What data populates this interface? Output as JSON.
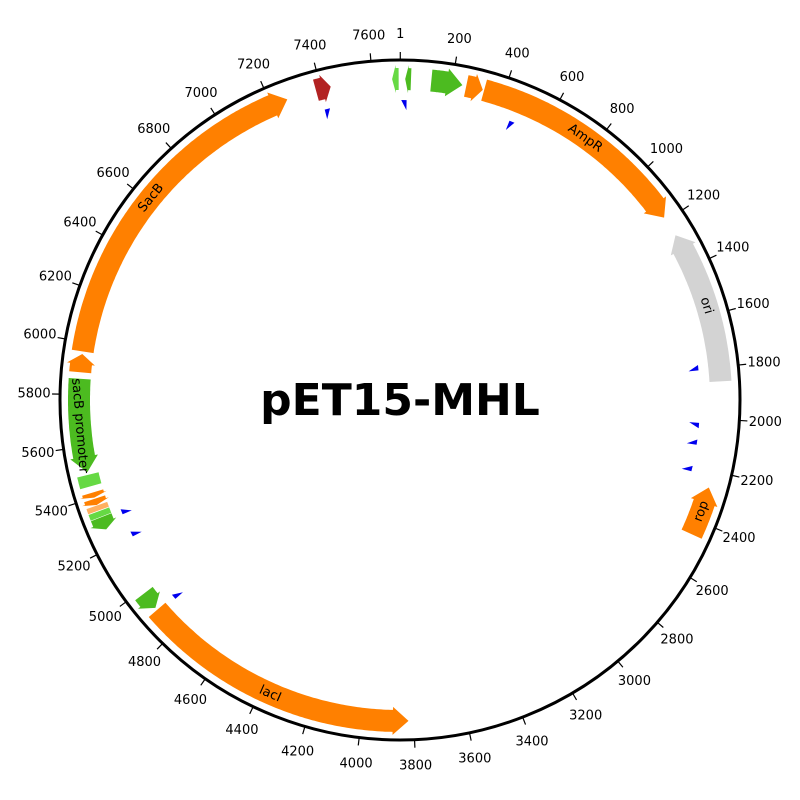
{
  "title": "pET15-MHL",
  "total_length": 7705,
  "tick_positions": [
    1,
    200,
    400,
    600,
    800,
    1000,
    1200,
    1400,
    1600,
    1800,
    2000,
    2200,
    2400,
    2600,
    2800,
    3000,
    3200,
    3400,
    3600,
    3800,
    4000,
    4200,
    4400,
    4600,
    4800,
    5000,
    5200,
    5400,
    5600,
    5800,
    6000,
    6200,
    6400,
    6600,
    6800,
    7000,
    7200,
    7400,
    7600
  ],
  "tick_labels": [
    "1",
    "200",
    "400",
    "600",
    "800",
    "1000",
    "1200",
    "1400",
    "1600",
    "1800",
    "2000",
    "2200",
    "2400",
    "2600",
    "2800",
    "3000",
    "3200",
    "3400",
    "3600",
    "3800",
    "4000",
    "4200",
    "4400",
    "4600",
    "4800",
    "5000",
    "5200",
    "5400",
    "5600",
    "5800",
    "6000",
    "6200",
    "6400",
    "6600",
    "6800",
    "7000",
    "7200",
    "7400",
    "7600"
  ],
  "colors": {
    "orange": "#ff8000",
    "green": "#4cbb20",
    "light_green": "#66d944",
    "light_orange": "#ffb060",
    "grey": "#d3d3d3",
    "blue": "#0000ee",
    "red": "#b22222"
  },
  "features": [
    {
      "label": "AmpR",
      "start": 325,
      "end": 1185,
      "strand": 1,
      "color": "orange",
      "lane": "main"
    },
    {
      "label": "",
      "start": 255,
      "end": 320,
      "strand": 1,
      "color": "orange",
      "lane": "main"
    },
    {
      "label": "",
      "start": 120,
      "end": 240,
      "strand": 1,
      "color": "green",
      "lane": "main"
    },
    {
      "label": "",
      "start": 20,
      "end": 42,
      "strand": -1,
      "color": "green",
      "lane": "main"
    },
    {
      "label": "",
      "start": 7675,
      "end": 7700,
      "strand": -1,
      "color": "light_green",
      "lane": "main"
    },
    {
      "label": "ori",
      "start": 1265,
      "end": 1855,
      "strand": -1,
      "color": "grey",
      "lane": "main"
    },
    {
      "label": "rop",
      "start": 2265,
      "end": 2455,
      "strand": -1,
      "color": "orange",
      "lane": "main"
    },
    {
      "label": "lacI",
      "start": 3820,
      "end": 4905,
      "strand": -1,
      "color": "orange",
      "lane": "main"
    },
    {
      "label": "",
      "start": 4915,
      "end": 4985,
      "strand": -1,
      "color": "green",
      "lane": "main"
    },
    {
      "label": "",
      "start": 5270,
      "end": 5320,
      "strand": -1,
      "color": "green",
      "lane": "main"
    },
    {
      "label": "",
      "start": 5322,
      "end": 5345,
      "strand": 0,
      "color": "light_green",
      "lane": "main"
    },
    {
      "label": "",
      "start": 5348,
      "end": 5368,
      "strand": 0,
      "color": "light_orange",
      "lane": "main"
    },
    {
      "label": "",
      "start": 5370,
      "end": 5395,
      "strand": -1,
      "color": "orange",
      "lane": "main"
    },
    {
      "label": "",
      "start": 5400,
      "end": 5420,
      "strand": -1,
      "color": "orange",
      "lane": "main"
    },
    {
      "label": "",
      "start": 5445,
      "end": 5490,
      "strand": 0,
      "color": "light_green",
      "lane": "main"
    },
    {
      "label": "sacB promoter",
      "start": 5500,
      "end": 5860,
      "strand": -1,
      "color": "green",
      "lane": "main"
    },
    {
      "label": "",
      "start": 5885,
      "end": 5955,
      "strand": 1,
      "color": "orange",
      "lane": "main"
    },
    {
      "label": "SacB",
      "start": 5965,
      "end": 7265,
      "strand": 1,
      "color": "orange",
      "lane": "main"
    },
    {
      "label": "",
      "start": 7380,
      "end": 7438,
      "strand": 1,
      "color": "red",
      "lane": "main"
    }
  ],
  "primers": [
    {
      "pos": 27,
      "strand": -1
    },
    {
      "pos": 7394,
      "strand": 1
    },
    {
      "pos": 458,
      "strand": 1
    },
    {
      "pos": 1805,
      "strand": -1
    },
    {
      "pos": 2020,
      "strand": 1
    },
    {
      "pos": 2110,
      "strand": -1
    },
    {
      "pos": 2220,
      "strand": -1
    },
    {
      "pos": 4890,
      "strand": 1
    },
    {
      "pos": 5200,
      "strand": 1
    },
    {
      "pos": 5300,
      "strand": 1
    }
  ]
}
